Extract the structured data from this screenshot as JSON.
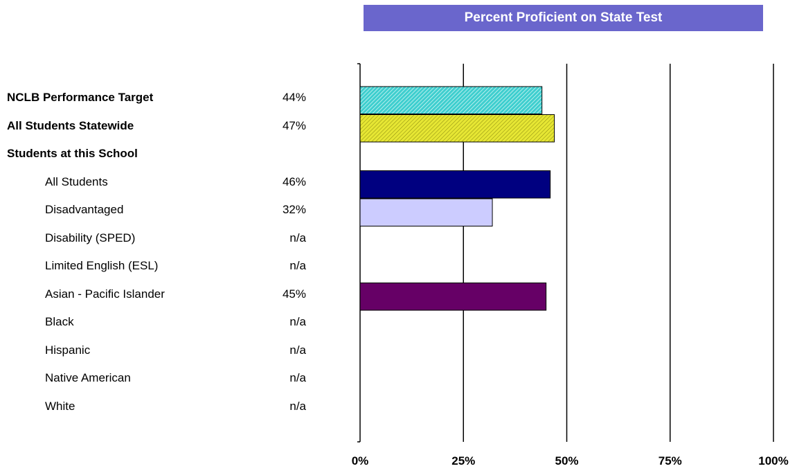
{
  "chart_data": {
    "type": "bar",
    "orientation": "horizontal",
    "title": "Percent Proficient on State Test",
    "xlim": [
      0,
      100
    ],
    "xticks": [
      "0%",
      "25%",
      "50%",
      "75%",
      "100%"
    ],
    "grid": true,
    "rows": [
      {
        "label": "NCLB Performance Target",
        "display": "44%",
        "value": 44,
        "bold": true,
        "indent": false,
        "color": "#3fcfcf",
        "pattern": "hatch"
      },
      {
        "label": "All Students Statewide",
        "display": "47%",
        "value": 47,
        "bold": true,
        "indent": false,
        "color": "#e6e633",
        "pattern": "hatch"
      },
      {
        "label": "Students at this School",
        "display": "",
        "value": null,
        "bold": true,
        "indent": false,
        "color": null,
        "pattern": null
      },
      {
        "label": "All Students",
        "display": "46%",
        "value": 46,
        "bold": false,
        "indent": true,
        "color": "#000080",
        "pattern": null
      },
      {
        "label": "Disadvantaged",
        "display": "32%",
        "value": 32,
        "bold": false,
        "indent": true,
        "color": "#ccccff",
        "pattern": null
      },
      {
        "label": "Disability (SPED)",
        "display": "n/a",
        "value": null,
        "bold": false,
        "indent": true,
        "color": null,
        "pattern": null
      },
      {
        "label": "Limited English (ESL)",
        "display": "n/a",
        "value": null,
        "bold": false,
        "indent": true,
        "color": null,
        "pattern": null
      },
      {
        "label": "Asian - Pacific Islander",
        "display": "45%",
        "value": 45,
        "bold": false,
        "indent": true,
        "color": "#660066",
        "pattern": null
      },
      {
        "label": "Black",
        "display": "n/a",
        "value": null,
        "bold": false,
        "indent": true,
        "color": null,
        "pattern": null
      },
      {
        "label": "Hispanic",
        "display": "n/a",
        "value": null,
        "bold": false,
        "indent": true,
        "color": null,
        "pattern": null
      },
      {
        "label": "Native American",
        "display": "n/a",
        "value": null,
        "bold": false,
        "indent": true,
        "color": null,
        "pattern": null
      },
      {
        "label": "White",
        "display": "n/a",
        "value": null,
        "bold": false,
        "indent": true,
        "color": null,
        "pattern": null
      }
    ]
  }
}
